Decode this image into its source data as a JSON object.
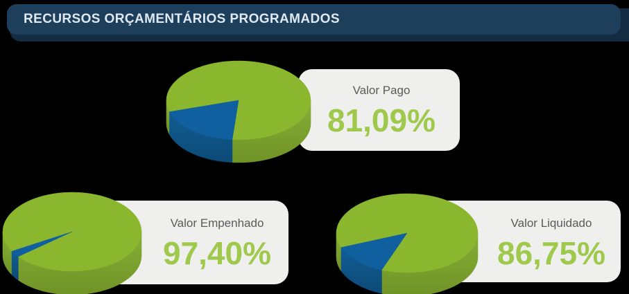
{
  "header": {
    "title": "RECURSOS ORÇAMENTÁRIOS PROGRAMADOS"
  },
  "chart_data": [
    {
      "type": "pie",
      "title": "Valor Pago",
      "display_value": "81,09%",
      "values": [
        81.09,
        18.91
      ],
      "slice_colors": [
        "#8bb72f",
        "#10609f"
      ],
      "layout": {
        "blue_start_deg": 95,
        "position": "top-center"
      }
    },
    {
      "type": "pie",
      "title": "Valor Empenhado",
      "display_value": "97,40%",
      "values": [
        97.4,
        2.6
      ],
      "slice_colors": [
        "#8bb72f",
        "#10609f"
      ],
      "layout": {
        "blue_start_deg": 141,
        "position": "bottom-left"
      }
    },
    {
      "type": "pie",
      "title": "Valor Liquidado",
      "display_value": "86,75%",
      "values": [
        86.75,
        13.25
      ],
      "slice_colors": [
        "#8bb72f",
        "#10609f"
      ],
      "layout": {
        "blue_start_deg": 111,
        "position": "bottom-right"
      }
    }
  ],
  "colors": {
    "page_bg": "#000000",
    "header_bg": "#1d3f5c",
    "header_shadow": "#132c42",
    "header_text": "#dfe9f2",
    "card_bg": "#efefed",
    "label_text": "#595a5c",
    "value_text": "#9fc94d",
    "pie_green_top": "#8bb72f",
    "pie_green_side_from": "#87af37",
    "pie_green_side_to": "#6f9326",
    "pie_blue_top": "#10609f",
    "pie_blue_side_from": "#115d93",
    "pie_blue_side_to": "#0c4a77"
  }
}
